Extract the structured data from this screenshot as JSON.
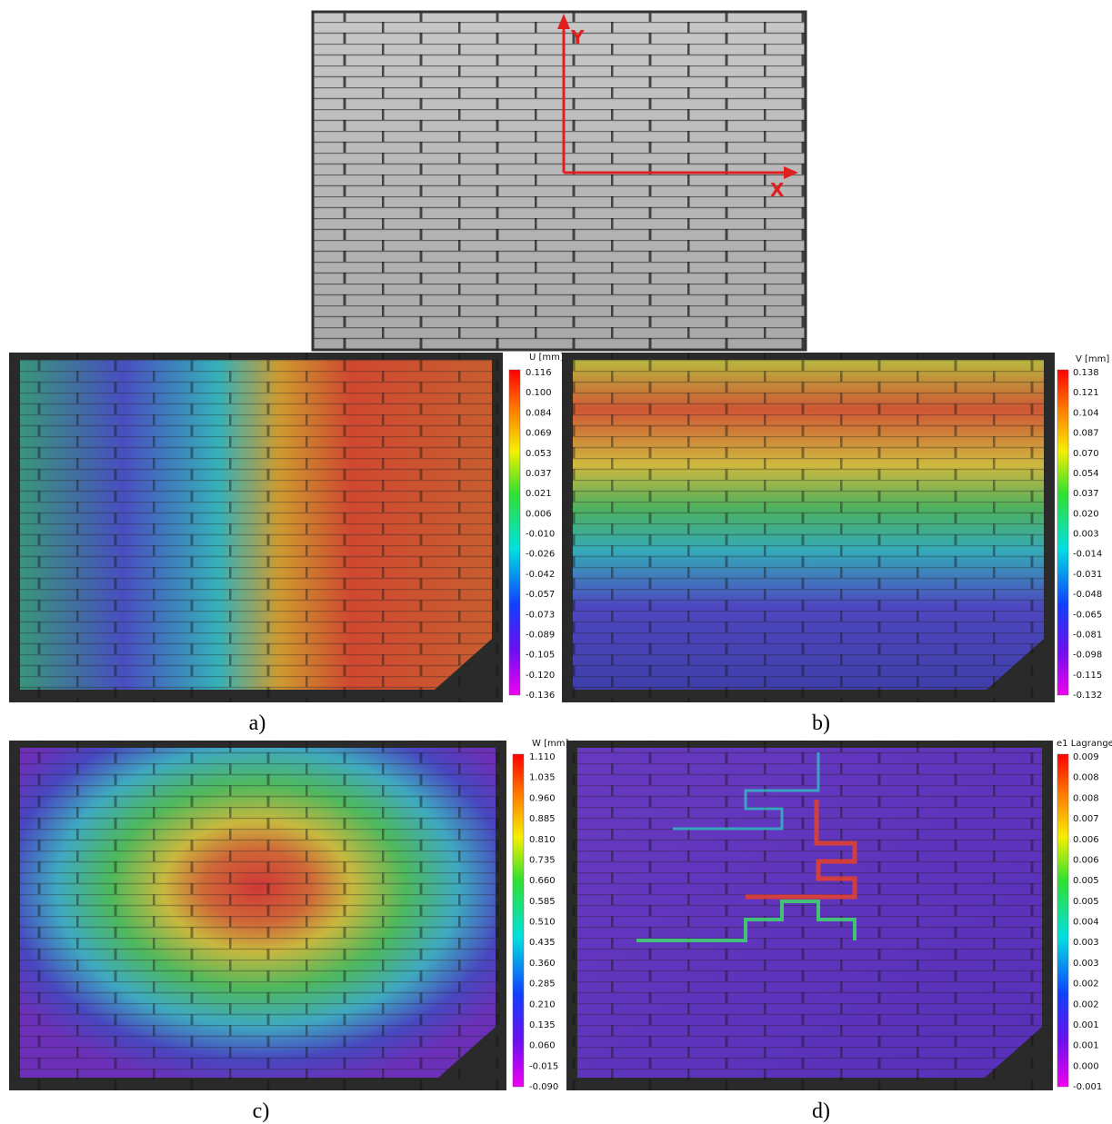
{
  "top_photo": {
    "y_axis_label": "Y",
    "x_axis_label": "X"
  },
  "panels": [
    {
      "caption": "a)",
      "colorbar_title": "U [mm]",
      "colorbar_labels": [
        "0.116",
        "0.100",
        "0.084",
        "0.069",
        "0.053",
        "0.037",
        "0.021",
        "0.006",
        "-0.010",
        "-0.026",
        "-0.042",
        "-0.057",
        "-0.073",
        "-0.089",
        "-0.105",
        "-0.120",
        "-0.136"
      ]
    },
    {
      "caption": "b)",
      "colorbar_title": "V [mm]",
      "colorbar_labels": [
        "0.138",
        "0.121",
        "0.104",
        "0.087",
        "0.070",
        "0.054",
        "0.037",
        "0.020",
        "0.003",
        "-0.014",
        "-0.031",
        "-0.048",
        "-0.065",
        "-0.081",
        "-0.098",
        "-0.115",
        "-0.132"
      ]
    },
    {
      "caption": "c)",
      "colorbar_title": "W [mm]",
      "colorbar_labels": [
        "1.110",
        "1.035",
        "0.960",
        "0.885",
        "0.810",
        "0.735",
        "0.660",
        "0.585",
        "0.510",
        "0.435",
        "0.360",
        "0.285",
        "0.210",
        "0.135",
        "0.060",
        "-0.015",
        "-0.090"
      ]
    },
    {
      "caption": "d)",
      "colorbar_title": "e1 Lagrange",
      "colorbar_labels": [
        "0.009",
        "0.008",
        "0.008",
        "0.007",
        "0.006",
        "0.006",
        "0.005",
        "0.005",
        "0.004",
        "0.003",
        "0.003",
        "0.002",
        "0.002",
        "0.001",
        "0.001",
        "0.000",
        "-0.001"
      ]
    }
  ]
}
